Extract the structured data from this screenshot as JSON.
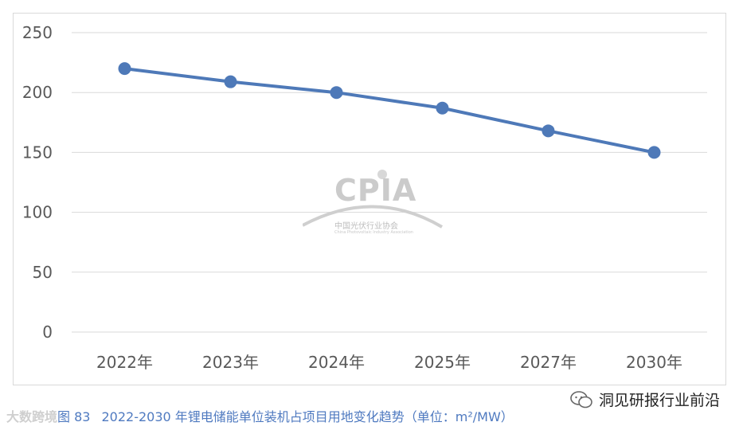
{
  "chart_data": {
    "type": "line",
    "categories": [
      "2022年",
      "2023年",
      "2024年",
      "2025年",
      "2027年",
      "2030年"
    ],
    "series": [
      {
        "values": [
          220,
          209,
          200,
          187,
          168,
          150
        ],
        "color": "#4e79b8"
      }
    ],
    "yticks": [
      "0",
      "50",
      "100",
      "150",
      "200",
      "250"
    ],
    "ylim": [
      0,
      250
    ],
    "grid": true
  },
  "watermark": {
    "logo": "CPIA",
    "cn": "中国光伏行业协会",
    "en": "China Photovoltaic Industry Association"
  },
  "caption": {
    "source": "大数跨境",
    "figure": "图 83",
    "text": "2022-2030 年锂电储能单位装机占项目用地变化趋势（单位：m²/MW）"
  },
  "brand": {
    "name": "洞见研报行业前沿",
    "icon": "wechat-icon"
  },
  "colors": {
    "line": "#4e79b8",
    "grid": "#d9d9d9",
    "axis_text": "#595959",
    "caption": "#4f7ac0"
  }
}
